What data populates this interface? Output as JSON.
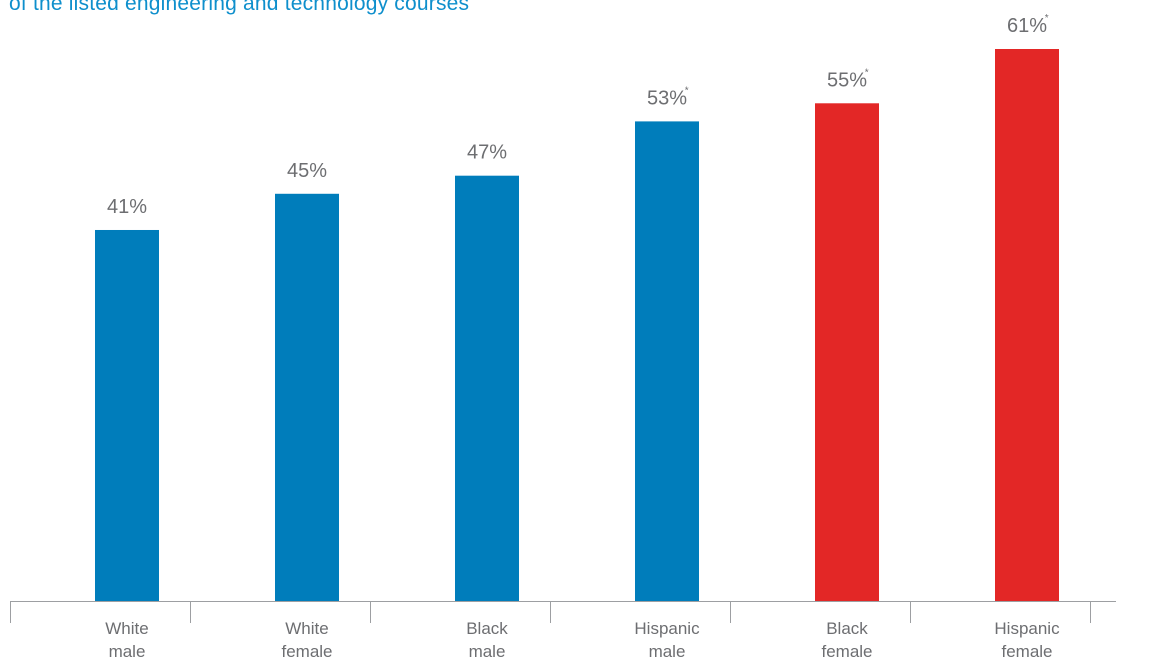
{
  "chart_data": {
    "type": "bar",
    "subtitle": "of the listed engineering and technology courses",
    "categories": [
      [
        "White",
        "male"
      ],
      [
        "White",
        "female"
      ],
      [
        "Black",
        "male"
      ],
      [
        "Hispanic",
        "male"
      ],
      [
        "Black",
        "female"
      ],
      [
        "Hispanic",
        "female"
      ]
    ],
    "values": [
      41,
      45,
      47,
      53,
      55,
      61
    ],
    "labels": [
      "41%",
      "45%",
      "47%",
      "53%",
      "55%",
      "61%"
    ],
    "significance_marks": [
      "",
      "",
      "",
      "*",
      "*",
      "*"
    ],
    "bar_colors": [
      "#007dbb",
      "#007dbb",
      "#007dbb",
      "#007dbb",
      "#e32726",
      "#e32726"
    ],
    "ylim": [
      0,
      61
    ],
    "grid": false,
    "legend": "none",
    "xlabel": "",
    "ylabel": ""
  }
}
